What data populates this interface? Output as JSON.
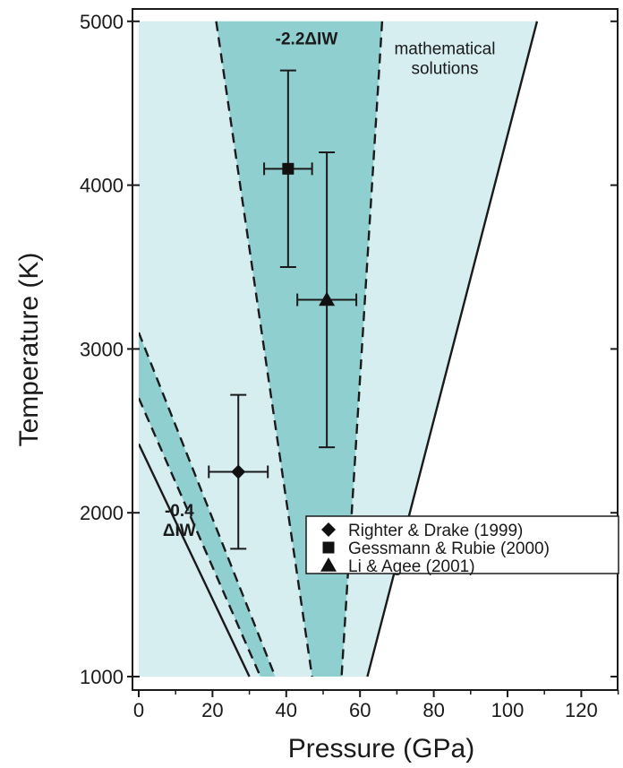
{
  "chart_data": {
    "type": "scatter",
    "xlabel": "Pressure (GPa)",
    "ylabel": "Temperature (K)",
    "xlim": [
      0,
      130
    ],
    "ylim": [
      950,
      5050
    ],
    "xticks": [
      0,
      20,
      40,
      60,
      80,
      100,
      120
    ],
    "yticks": [
      1000,
      2000,
      3000,
      4000,
      5000
    ],
    "xtick_labels": [
      "0",
      "20",
      "40",
      "60",
      "80",
      "100",
      "120"
    ],
    "ytick_labels": [
      "1000",
      "2000",
      "3000",
      "4000",
      "5000"
    ],
    "regions": [
      {
        "id": "mathematical-solutions",
        "color": "#d6eef0",
        "polygon": [
          [
            0,
            5000
          ],
          [
            108,
            5000
          ],
          [
            62,
            1000
          ],
          [
            0,
            1000
          ]
        ]
      },
      {
        "id": "band-2.2",
        "color": "#8fcfcf",
        "polygon": [
          [
            21,
            5000
          ],
          [
            66,
            5000
          ],
          [
            55,
            1000
          ],
          [
            47,
            1000
          ]
        ]
      },
      {
        "id": "band-0.4",
        "color": "#8fcfcf",
        "polygon": [
          [
            0,
            3100
          ],
          [
            0,
            2700
          ],
          [
            33,
            1000
          ],
          [
            37,
            1000
          ]
        ]
      }
    ],
    "lines": [
      {
        "id": "solution-right-edge",
        "style": "solid",
        "points": [
          [
            108,
            5000
          ],
          [
            62,
            1000
          ]
        ]
      },
      {
        "id": "solution-left-edge",
        "style": "solid",
        "points": [
          [
            0,
            2420
          ],
          [
            30,
            1000
          ]
        ]
      },
      {
        "id": "band-2.2-left",
        "style": "dashed",
        "points": [
          [
            21,
            5000
          ],
          [
            47,
            1000
          ]
        ]
      },
      {
        "id": "band-2.2-right",
        "style": "dashed",
        "points": [
          [
            66,
            5000
          ],
          [
            55,
            1000
          ]
        ]
      },
      {
        "id": "band-0.4-upper",
        "style": "dashed",
        "points": [
          [
            0,
            3100
          ],
          [
            37,
            1000
          ]
        ]
      },
      {
        "id": "band-0.4-lower",
        "style": "dashed",
        "points": [
          [
            0,
            2700
          ],
          [
            33,
            1000
          ]
        ]
      }
    ],
    "series": [
      {
        "name": "Righter & Drake (1999)",
        "marker": "diamond",
        "points": [
          {
            "x": 27,
            "y": 2250,
            "xerr": 8,
            "yerr": 470
          }
        ]
      },
      {
        "name": "Gessmann & Rubie (2000)",
        "marker": "square",
        "points": [
          {
            "x": 40.5,
            "y": 4100,
            "xerr": 6.5,
            "yerr": 600
          }
        ]
      },
      {
        "name": "Li & Agee (2001)",
        "marker": "triangle",
        "points": [
          {
            "x": 51,
            "y": 3300,
            "xerr": 8,
            "yerr": 900
          }
        ]
      }
    ],
    "annotations": [
      {
        "id": "label-2.2",
        "lines": [
          "-2.2ΔIW"
        ],
        "x": 45.5,
        "y": 4860,
        "bold": true,
        "anchor": "middle"
      },
      {
        "id": "label-math",
        "lines": [
          "mathematical",
          "solutions"
        ],
        "x": 83,
        "y": 4800,
        "bold": false,
        "anchor": "middle"
      },
      {
        "id": "label-0.4",
        "lines": [
          "-0.4",
          "ΔIW"
        ],
        "x": 11,
        "y": 1980,
        "bold": true,
        "anchor": "middle"
      }
    ],
    "legend": {
      "position": "bottom-right",
      "entries": [
        {
          "marker": "diamond",
          "label": "Righter & Drake (1999)"
        },
        {
          "marker": "square",
          "label": "Gessmann & Rubie (2000)"
        },
        {
          "marker": "triangle",
          "label": "Li & Agee (2001)"
        }
      ]
    }
  }
}
